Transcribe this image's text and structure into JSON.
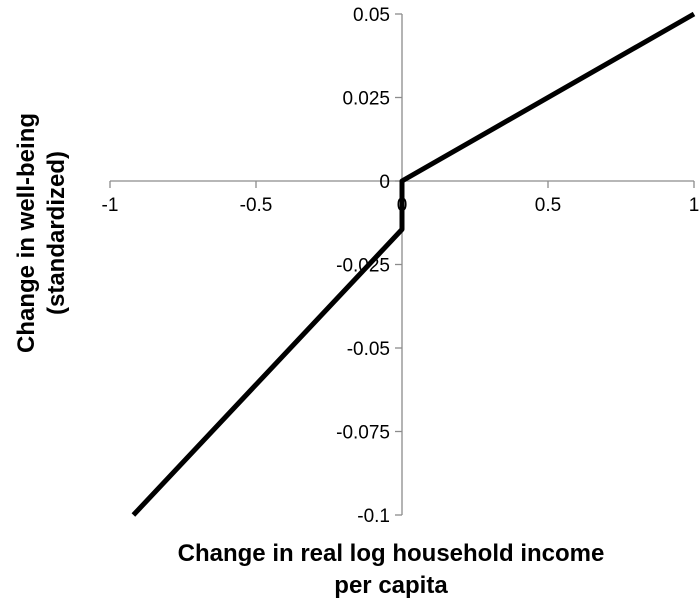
{
  "chart_data": {
    "type": "line",
    "title": "",
    "xlabel_lines": [
      "Change in real log household income",
      "per capita"
    ],
    "ylabel_lines": [
      "Change in well-being",
      "(standardized)"
    ],
    "xlim": [
      -1,
      1
    ],
    "ylim": [
      -0.1,
      0.05
    ],
    "x_ticks": [
      -1,
      -0.5,
      0,
      0.5,
      1
    ],
    "x_tick_labels": [
      "-1",
      "-0.5",
      "0",
      "0.5",
      "1"
    ],
    "y_ticks": [
      0.05,
      0.025,
      0,
      -0.025,
      -0.05,
      -0.075,
      -0.1
    ],
    "y_tick_labels": [
      "0.05",
      "0.025",
      "0",
      "-0.025",
      "-0.05",
      "-0.075",
      "-0.1"
    ],
    "grid": false,
    "legend": "none",
    "line_color": "#000000",
    "series": [
      {
        "points": [
          {
            "x": -0.92,
            "y": -0.1
          },
          {
            "x": 0,
            "y": -0.0145
          },
          {
            "x": 0,
            "y": 0
          },
          {
            "x": 1,
            "y": 0.05
          }
        ]
      }
    ]
  }
}
